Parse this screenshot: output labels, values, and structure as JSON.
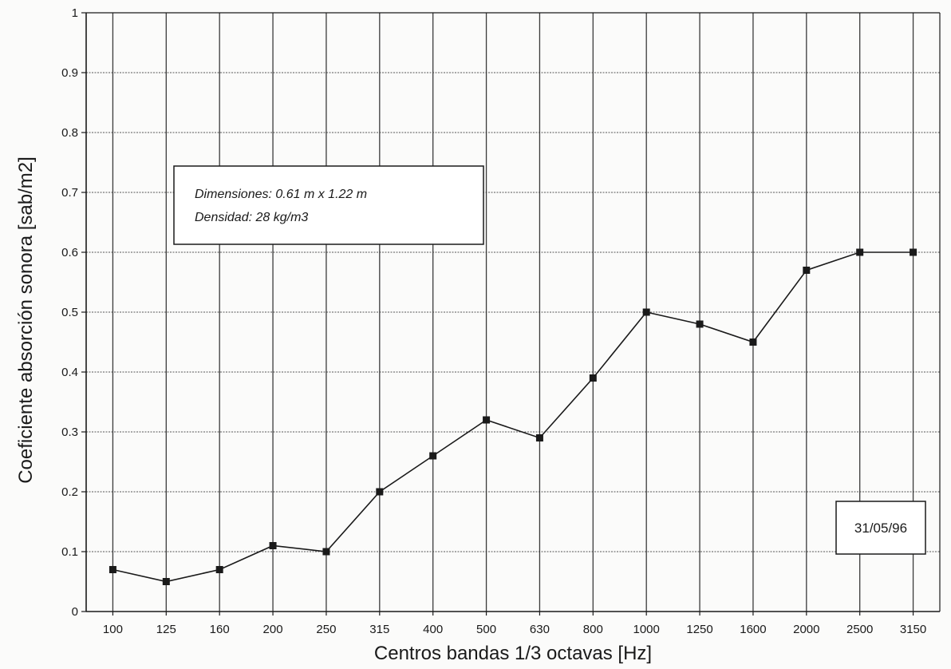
{
  "chart_data": {
    "type": "line",
    "title": "",
    "xlabel": "Centros bandas 1/3 octavas [Hz]",
    "ylabel": "Coeficiente absorción sonora [sab/m2]",
    "categories": [
      "100",
      "125",
      "160",
      "200",
      "250",
      "315",
      "400",
      "500",
      "630",
      "800",
      "1000",
      "1250",
      "1600",
      "2000",
      "2500",
      "3150"
    ],
    "series": [
      {
        "values": [
          0.07,
          0.05,
          0.07,
          0.11,
          0.1,
          0.2,
          0.26,
          0.32,
          0.29,
          0.39,
          0.5,
          0.48,
          0.45,
          0.57,
          0.6,
          0.6
        ]
      }
    ],
    "ylim": [
      0,
      1
    ],
    "yticks": [
      "0",
      "0.1",
      "0.2",
      "0.3",
      "0.4",
      "0.5",
      "0.6",
      "0.7",
      "0.8",
      "0.9",
      "1"
    ],
    "grid": true,
    "marker": "square",
    "color": "#1a1a1a"
  },
  "annotations": {
    "info_lines": [
      "Dimensiones: 0.61 m x 1.22 m",
      "Densidad: 28 kg/m3"
    ],
    "date": "31/05/96"
  }
}
